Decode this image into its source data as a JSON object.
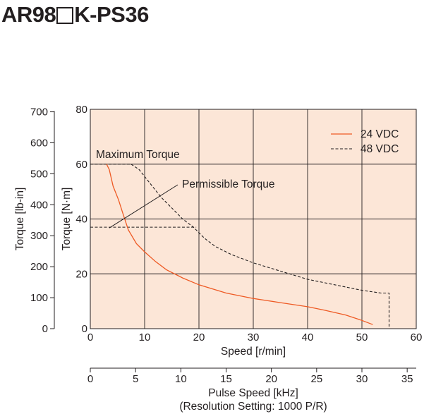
{
  "title_pre": "AR98",
  "title_post": "K-PS36",
  "chart_data": {
    "type": "line",
    "title": "AR98□K-PS36",
    "xlabel": "Speed [r/min]",
    "ylabel": "Torque [N·m]",
    "ylabel_secondary": "Torque [lb-in]",
    "x2label": "Pulse Speed [kHz]",
    "x2label_note": "(Resolution Setting: 1000 P/R)",
    "xlim": [
      0,
      60
    ],
    "ylim": [
      0,
      80
    ],
    "x_ticks": [
      "0",
      "10",
      "20",
      "30",
      "40",
      "50",
      "60"
    ],
    "y_ticks": [
      "0",
      "20",
      "40",
      "60",
      "80"
    ],
    "y2_ticks": [
      "0",
      "100",
      "200",
      "300",
      "400",
      "500",
      "600",
      "700"
    ],
    "x2_ticks": [
      "0",
      "5",
      "10",
      "15",
      "20",
      "25",
      "30",
      "35"
    ],
    "grid": true,
    "legend_position": "top-right",
    "series": [
      {
        "name": "24 VDC",
        "color": "#ee5a24",
        "style": "solid",
        "x": [
          3,
          3.5,
          4.2,
          5.2,
          6,
          7,
          8.5,
          10,
          12,
          14,
          17,
          20,
          25,
          30,
          35,
          40,
          43,
          47,
          50,
          52
        ],
        "y": [
          60,
          58,
          52,
          47,
          42,
          36,
          31,
          28,
          24.5,
          21.5,
          18.5,
          16,
          13,
          11,
          9.5,
          8,
          6.8,
          5,
          3,
          1.5
        ]
      },
      {
        "name": "48 VDC",
        "color": "#231f20",
        "style": "dashed",
        "x": [
          7.5,
          9,
          11,
          13,
          15,
          17,
          19,
          21,
          23,
          26,
          30,
          35,
          40,
          45,
          50,
          53.5,
          55,
          55
        ],
        "y": [
          60,
          58,
          53,
          48,
          44,
          40,
          37,
          33,
          30,
          27,
          24,
          21,
          18,
          16,
          14,
          13,
          13,
          0
        ]
      }
    ],
    "reference_lines": [
      {
        "y": 60,
        "x_from": 0,
        "x_to": 7.5,
        "style": "dashed"
      },
      {
        "y": 37,
        "x_from": 0,
        "x_to": 19.5,
        "style": "dashed"
      }
    ],
    "annotations": [
      {
        "text": "Maximum Torque",
        "points_to": {
          "x": 1,
          "y": 60
        }
      },
      {
        "text": "Permissible Torque",
        "points_to": {
          "x": 3.5,
          "y": 37
        }
      }
    ]
  }
}
